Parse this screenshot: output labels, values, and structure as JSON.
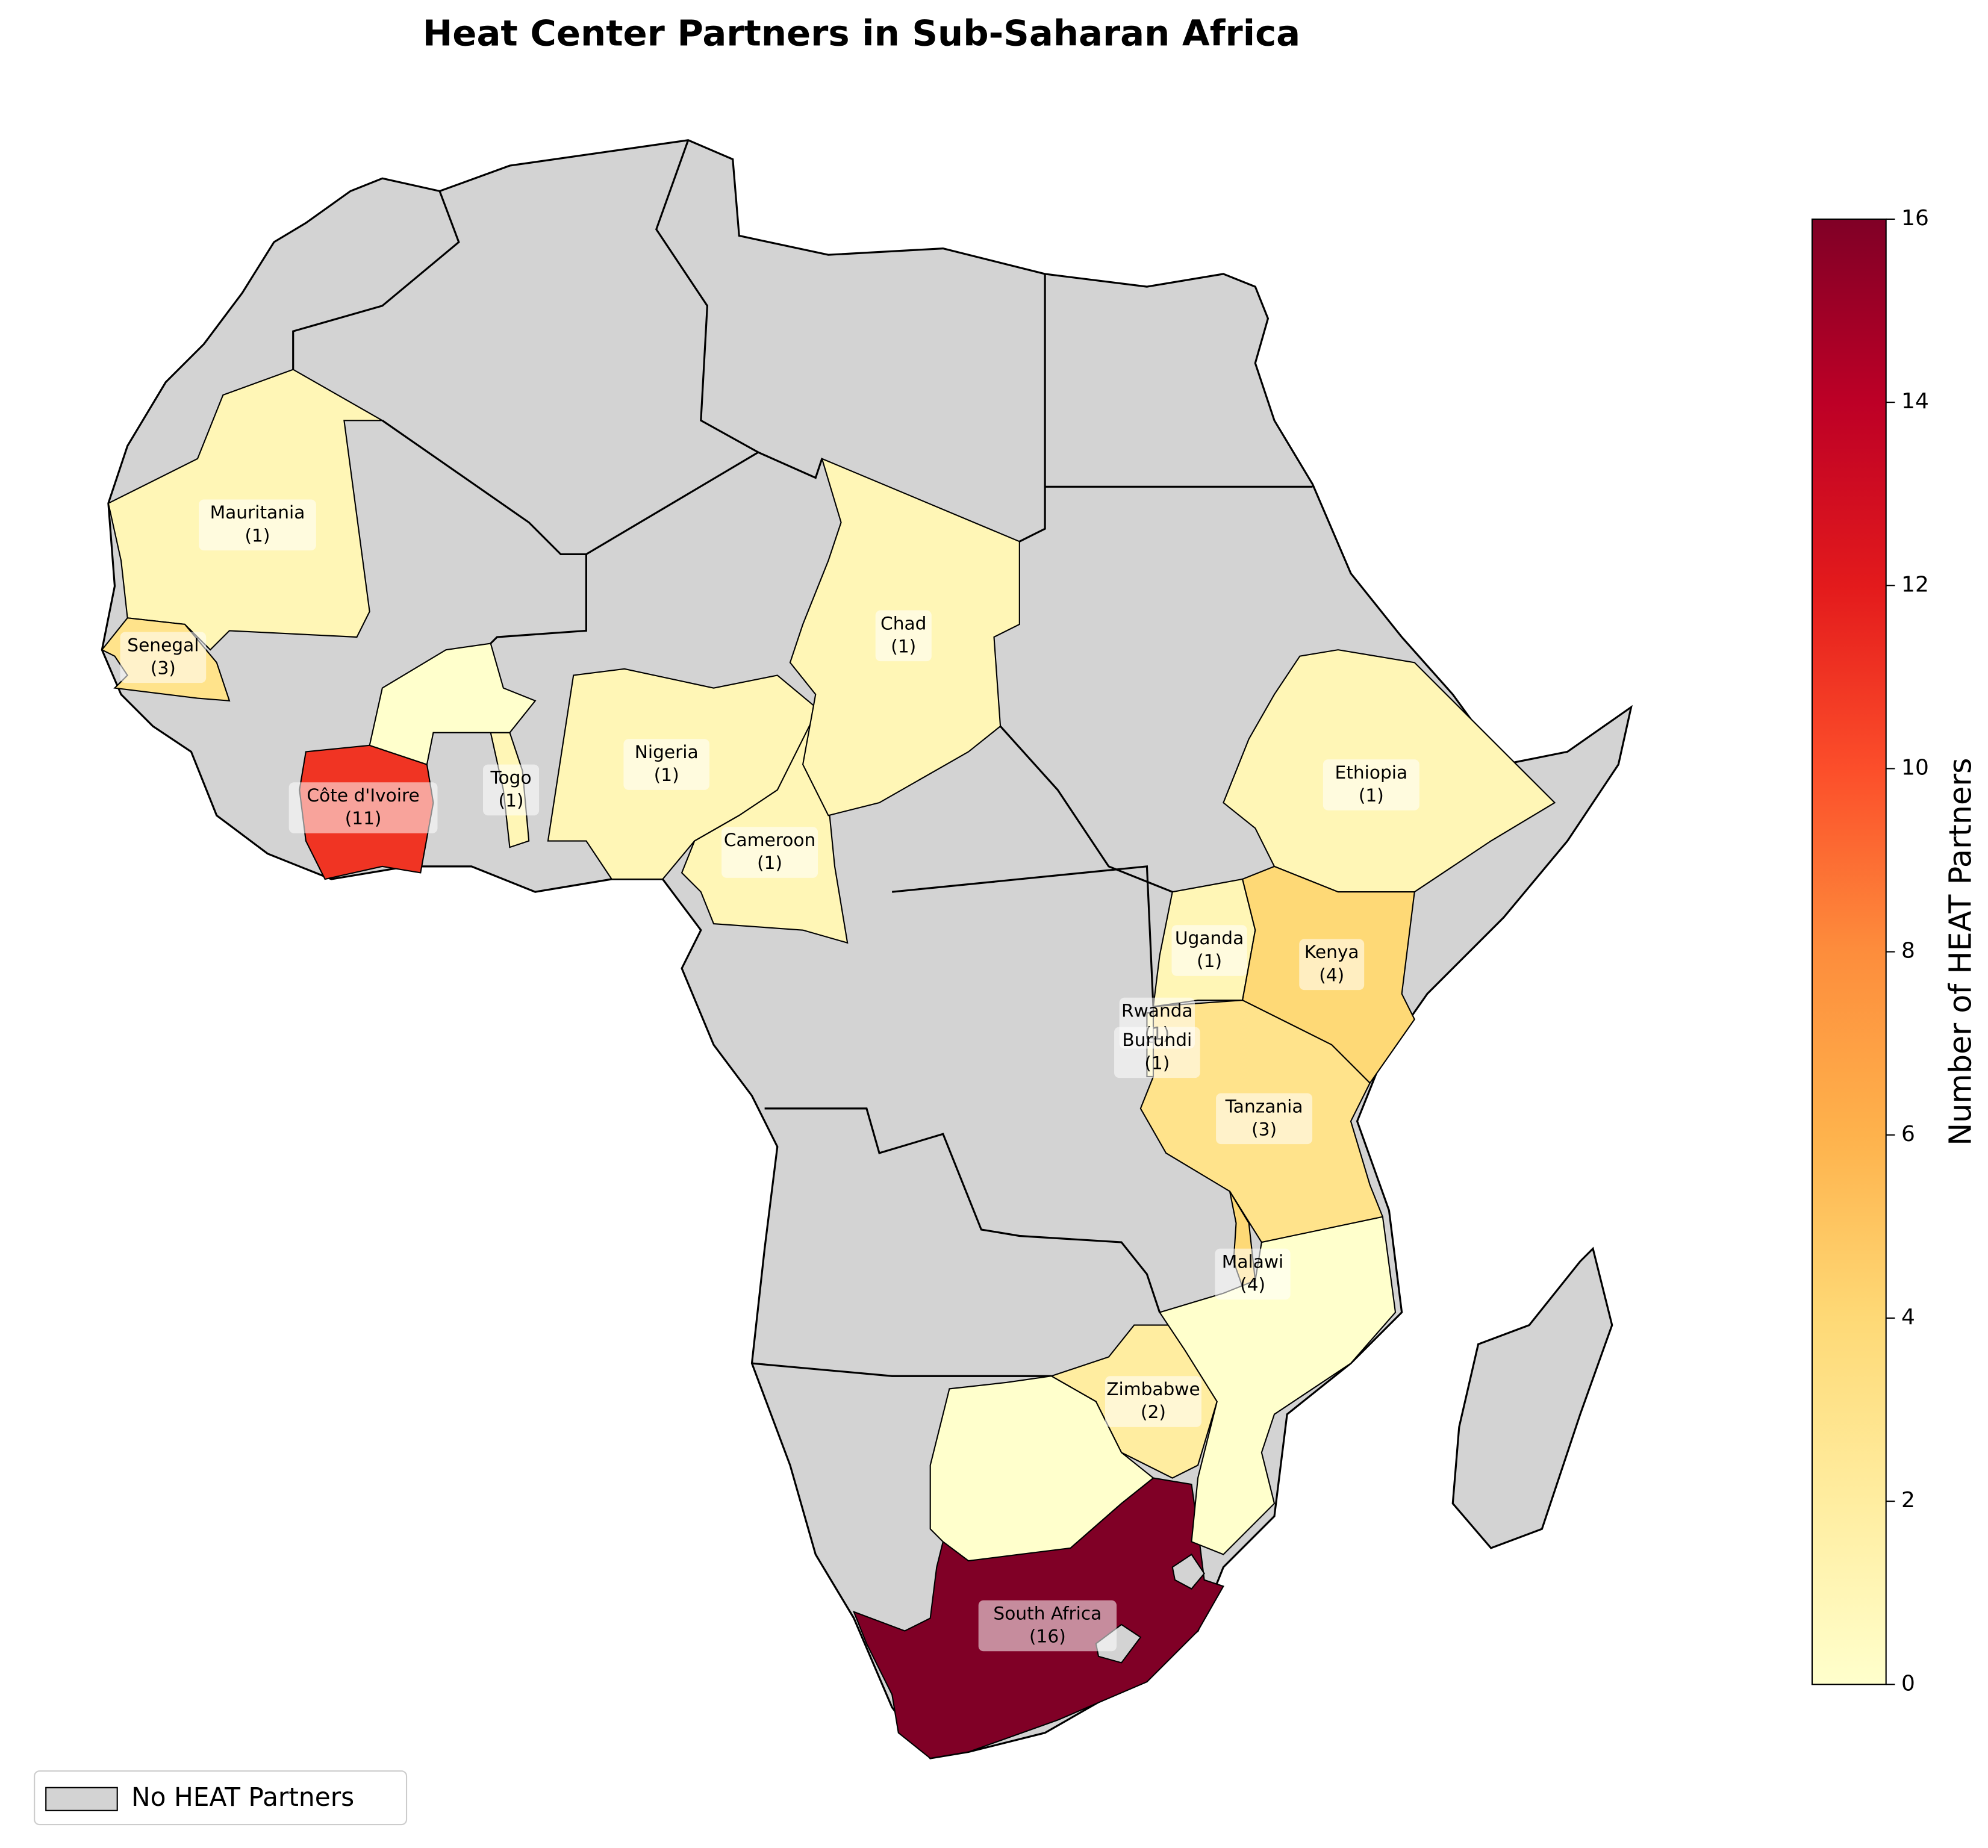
{
  "chart_data": {
    "type": "choropleth",
    "title": "Heat Center Partners in Sub-Saharan Africa",
    "categories": [
      "Mauritania",
      "Senegal",
      "Côte d'Ivoire",
      "Togo",
      "Nigeria",
      "Cameroon",
      "Chad",
      "Ethiopia",
      "Uganda",
      "Kenya",
      "Rwanda",
      "Burundi",
      "Tanzania",
      "Malawi",
      "Zimbabwe",
      "South Africa",
      null,
      null,
      null
    ],
    "values": [
      1,
      3,
      11,
      1,
      1,
      1,
      1,
      1,
      1,
      4,
      1,
      1,
      3,
      4,
      2,
      16,
      0,
      0,
      0
    ],
    "value_labels": [
      "(1)",
      "(3)",
      "(11)",
      "(1)",
      "(1)",
      "(1)",
      "(1)",
      "(1)",
      "(1)",
      "(4)",
      "(1)",
      "(1)",
      "(3)",
      "(4)",
      "(2)",
      "(16)",
      null,
      null,
      null
    ],
    "colormap": "YlOrRd",
    "colorbar_label": "Number of HEAT Partners",
    "ylim": [
      0,
      16
    ],
    "yticks": [
      0,
      2,
      4,
      6,
      8,
      10,
      12,
      14,
      16
    ],
    "no_data_color": "#d3d3d3",
    "legend_label": "No HEAT Partners",
    "legend_position": "lower left"
  }
}
